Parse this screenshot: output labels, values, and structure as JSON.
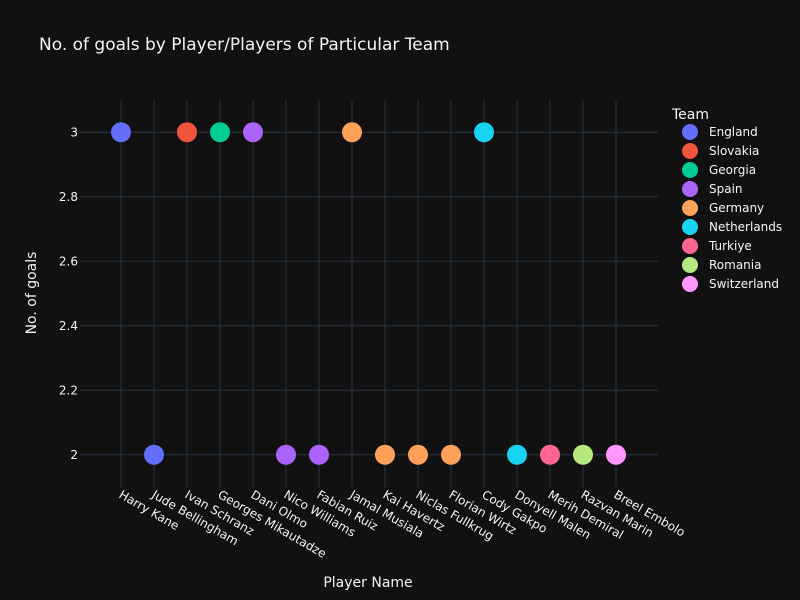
{
  "chart_data": {
    "type": "scatter",
    "title": "No. of goals by Player/Players of Particular Team",
    "xlabel": "Player Name",
    "ylabel": "No. of goals",
    "legend_title": "Team",
    "legend_position": "right",
    "ylim": [
      1.9,
      3.1
    ],
    "yticks": [
      2,
      2.2,
      2.4,
      2.6,
      2.8,
      3
    ],
    "grid": true,
    "categories": [
      "Harry Kane",
      "Jude Bellingham",
      "Ivan Schranz",
      "Georges Mikautadze",
      "Dani Olmo",
      "Nico Williams",
      "Fabian Ruiz",
      "Jamal Musiala",
      "Kai Havertz",
      "Niclas Fullkrug",
      "Florian Wirtz",
      "Cody Gakpo",
      "Donyell Malen",
      "Merih Demiral",
      "Razvan Marin",
      "Breel Embolo"
    ],
    "series": [
      {
        "name": "England",
        "color": "#636efa",
        "points": [
          {
            "x": "Harry Kane",
            "y": 3
          },
          {
            "x": "Jude Bellingham",
            "y": 2
          }
        ]
      },
      {
        "name": "Slovakia",
        "color": "#ef553b",
        "points": [
          {
            "x": "Ivan Schranz",
            "y": 3
          }
        ]
      },
      {
        "name": "Georgia",
        "color": "#00cc96",
        "points": [
          {
            "x": "Georges Mikautadze",
            "y": 3
          }
        ]
      },
      {
        "name": "Spain",
        "color": "#ab63fa",
        "points": [
          {
            "x": "Dani Olmo",
            "y": 3
          },
          {
            "x": "Nico Williams",
            "y": 2
          },
          {
            "x": "Fabian Ruiz",
            "y": 2
          }
        ]
      },
      {
        "name": "Germany",
        "color": "#ffa15a",
        "points": [
          {
            "x": "Jamal Musiala",
            "y": 3
          },
          {
            "x": "Kai Havertz",
            "y": 2
          },
          {
            "x": "Niclas Fullkrug",
            "y": 2
          },
          {
            "x": "Florian Wirtz",
            "y": 2
          }
        ]
      },
      {
        "name": "Netherlands",
        "color": "#19d3f3",
        "points": [
          {
            "x": "Cody Gakpo",
            "y": 3
          },
          {
            "x": "Donyell Malen",
            "y": 2
          }
        ]
      },
      {
        "name": "Turkiye",
        "color": "#ff6692",
        "points": [
          {
            "x": "Merih Demiral",
            "y": 2
          }
        ]
      },
      {
        "name": "Romania",
        "color": "#b6e880",
        "points": [
          {
            "x": "Razvan Marin",
            "y": 2
          }
        ]
      },
      {
        "name": "Switzerland",
        "color": "#ff97ff",
        "points": [
          {
            "x": "Breel Embolo",
            "y": 2
          }
        ]
      }
    ]
  },
  "colors": {
    "background": "#111111",
    "grid": "#283442",
    "text": "#f2f5fa"
  }
}
